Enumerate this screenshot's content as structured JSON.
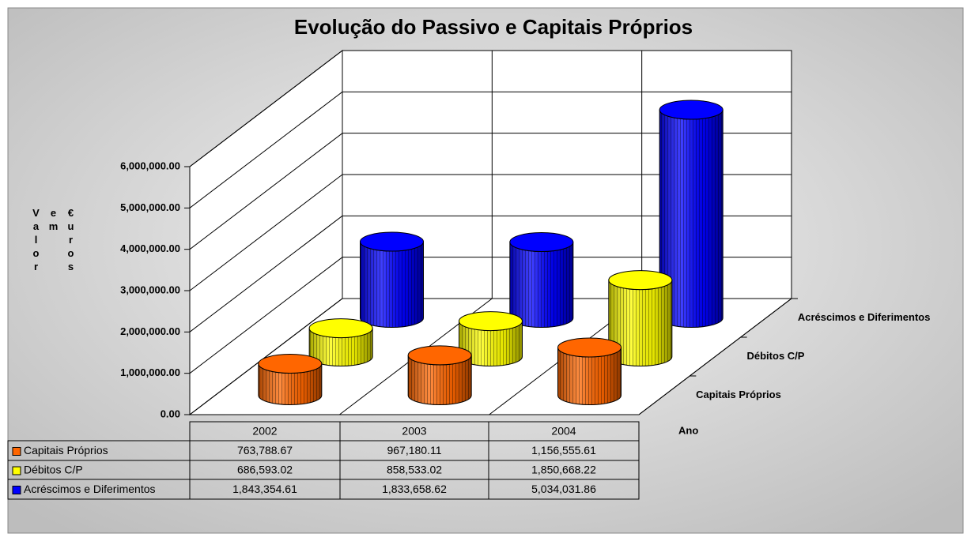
{
  "chart_data": {
    "type": "bar3d",
    "title": "Evolução do Passivo e Capitais Próprios",
    "y_label": "Valor em €uros",
    "x_label": "Ano",
    "categories": [
      "2002",
      "2003",
      "2004"
    ],
    "series": [
      {
        "name": "Capitais Próprios",
        "color": "#ff6600",
        "values": [
          763788.67,
          967180.11,
          1156555.61
        ],
        "value_labels": [
          "763,788.67",
          "967,180.11",
          "1,156,555.61"
        ]
      },
      {
        "name": "Débitos C/P",
        "color": "#ffff00",
        "values": [
          686593.02,
          858533.02,
          1850668.22
        ],
        "value_labels": [
          "686,593.02",
          "858,533.02",
          "1,850,668.22"
        ]
      },
      {
        "name": "Acréscimos e Diferimentos",
        "color": "#0000ff",
        "values": [
          1843354.61,
          1833658.62,
          5034031.86
        ],
        "value_labels": [
          "1,843,354.61",
          "1,833,658.62",
          "5,034,031.86"
        ]
      }
    ],
    "ylim": [
      0,
      6000000
    ],
    "yticks": [
      {
        "value": 0,
        "label": "0.00"
      },
      {
        "value": 1000000,
        "label": "1,000,000.00"
      },
      {
        "value": 2000000,
        "label": "2,000,000.00"
      },
      {
        "value": 3000000,
        "label": "3,000,000.00"
      },
      {
        "value": 4000000,
        "label": "4,000,000.00"
      },
      {
        "value": 5000000,
        "label": "5,000,000.00"
      },
      {
        "value": 6000000,
        "label": "6,000,000.00"
      }
    ],
    "grid": true
  }
}
